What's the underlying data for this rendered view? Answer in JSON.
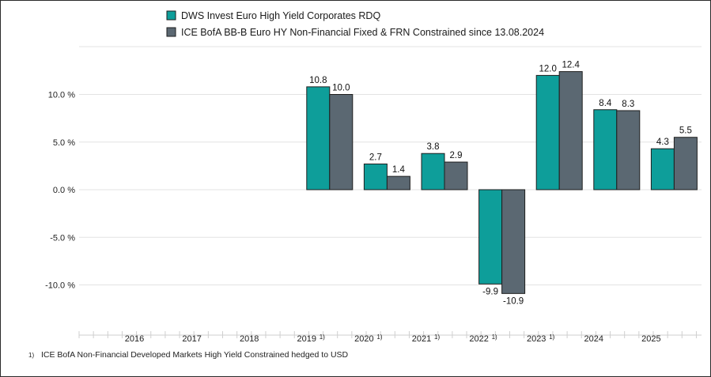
{
  "chart_data": {
    "type": "bar",
    "categories": [
      "2016",
      "2017",
      "2018",
      "2019",
      "2020",
      "2021",
      "2022",
      "2023",
      "2024",
      "2025"
    ],
    "category_markers": [
      "",
      "",
      "",
      "1)",
      "1)",
      "1)",
      "1)",
      "1)",
      "",
      ""
    ],
    "series": [
      {
        "name": "DWS Invest Euro High Yield Corporates RDQ",
        "color": "#0e9e9a",
        "values": [
          null,
          null,
          null,
          10.8,
          2.7,
          3.8,
          -9.9,
          12.0,
          8.4,
          4.3
        ],
        "labels": [
          "",
          "",
          "",
          "10.8",
          "2.7",
          "3.8",
          "-9.9",
          "12.0",
          "8.4",
          "4.3"
        ]
      },
      {
        "name": "ICE BofA BB-B Euro HY Non-Financial Fixed & FRN Constrained since 13.08.2024",
        "color": "#5b6872",
        "values": [
          null,
          null,
          null,
          10.0,
          1.4,
          2.9,
          -10.9,
          12.4,
          8.3,
          5.5
        ],
        "labels": [
          "",
          "",
          "",
          "10.0",
          "1.4",
          "2.9",
          "-10.9",
          "12.4",
          "8.3",
          "5.5"
        ]
      }
    ],
    "y_ticks": [
      10,
      5,
      0,
      -5,
      -10
    ],
    "y_tick_labels": [
      "10.0 %",
      "5.0 %",
      "0.0 %",
      "-5.0 %",
      "-10.0 %"
    ],
    "ylim": [
      -15,
      15
    ],
    "grid": true,
    "legend": "top-left",
    "footnote_marker": "1)",
    "footnote": "ICE BofA Non-Financial Developed Markets High Yield Constrained hedged to USD"
  }
}
